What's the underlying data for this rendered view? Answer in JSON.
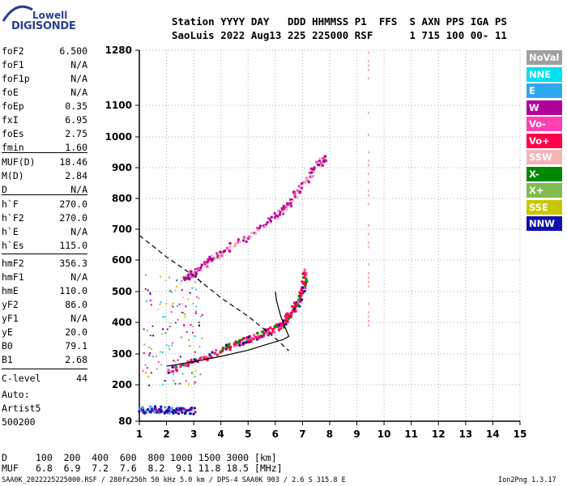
{
  "logo": {
    "line1": "Lowell",
    "line2": "DIGISONDE"
  },
  "header": {
    "line1": "Station YYYY DAY   DDD HHMMSS P1  FFS  S AXN PPS IGA PS",
    "line2": "SaoLuis 2022 Aug13 225 225000 RSF      1 715 100 00- 11"
  },
  "params": [
    {
      "label": "foF2",
      "value": "6.500"
    },
    {
      "label": "foF1",
      "value": "N/A"
    },
    {
      "label": "foF1p",
      "value": "N/A"
    },
    {
      "label": "foE",
      "value": "N/A"
    },
    {
      "label": "foEp",
      "value": "0.35"
    },
    {
      "label": "fxI",
      "value": "6.95"
    },
    {
      "label": "foEs",
      "value": "2.75"
    },
    {
      "label": "fmin",
      "value": "1.60"
    },
    {
      "label": "MUF(D)",
      "value": "18.46"
    },
    {
      "label": "M(D)",
      "value": "2.84"
    },
    {
      "label": "D",
      "value": "N/A"
    },
    {
      "label": "h`F",
      "value": "270.0"
    },
    {
      "label": "h`F2",
      "value": "270.0"
    },
    {
      "label": "h`E",
      "value": "N/A"
    },
    {
      "label": "h`Es",
      "value": "115.0"
    },
    {
      "label": "hmF2",
      "value": "356.3"
    },
    {
      "label": "hmF1",
      "value": "N/A"
    },
    {
      "label": "hmE",
      "value": "110.0"
    },
    {
      "label": "yF2",
      "value": "86.0"
    },
    {
      "label": "yF1",
      "value": "N/A"
    },
    {
      "label": "yE",
      "value": "20.0"
    },
    {
      "label": "B0",
      "value": "79.1"
    },
    {
      "label": "B1",
      "value": "2.68"
    },
    {
      "label": "C-level",
      "value": "44"
    }
  ],
  "auto": {
    "line1": "Auto:",
    "line2": "Artist5",
    "line3": "500200"
  },
  "legend": [
    {
      "label": "NoVal",
      "color": "#a0a0a0"
    },
    {
      "label": "NNE",
      "color": "#00e0f0"
    },
    {
      "label": "E",
      "color": "#30a8f0"
    },
    {
      "label": "W",
      "color": "#b0009a"
    },
    {
      "label": "Vo-",
      "color": "#ff40b0"
    },
    {
      "label": "Vo+",
      "color": "#ff0048"
    },
    {
      "label": "SSW",
      "color": "#f4b4b4"
    },
    {
      "label": "X-",
      "color": "#008800"
    },
    {
      "label": "X+",
      "color": "#80bc50"
    },
    {
      "label": "SSE",
      "color": "#c8c800"
    },
    {
      "label": "NNW",
      "color": "#1010b0"
    }
  ],
  "muf_table": {
    "d_label": "D",
    "d_values": "100  200  400  600  800 1000 1500 3000 [km]",
    "muf_label": "MUF",
    "muf_values": "6.8  6.9  7.2  7.6  8.2  9.1 11.8 18.5 [MHz]"
  },
  "footer": {
    "left": "SAA0K_2022225225000.RSF / 280fx256h 50 kHz 5.0 km / DPS-4 SAA0K 903 / 2.6 S 315.8 E",
    "right": "Ion2Png 1.3.17"
  },
  "chart_data": {
    "type": "scatter",
    "x_ticks": [
      "1",
      "2",
      "3",
      "4",
      "5",
      "6",
      "7",
      "8",
      "9",
      "10",
      "11",
      "12",
      "13",
      "14",
      "15"
    ],
    "y_ticks": [
      "80",
      "200",
      "300",
      "400",
      "500",
      "600",
      "700",
      "800",
      "900",
      "1000",
      "1100",
      "1280"
    ],
    "xlim": [
      1,
      15
    ],
    "y_scale": "nonlinear (height in km)",
    "ylim": [
      80,
      1280
    ],
    "grid": true,
    "traces": [
      {
        "name": "O-trace",
        "color": "#ff0048",
        "points": [
          [
            2.0,
            248
          ],
          [
            3.0,
            280
          ],
          [
            4.0,
            315
          ],
          [
            4.5,
            335
          ],
          [
            5.0,
            350
          ],
          [
            5.5,
            365
          ],
          [
            6.0,
            385
          ],
          [
            6.3,
            405
          ],
          [
            6.5,
            430
          ],
          [
            6.8,
            470
          ],
          [
            7.0,
            520
          ],
          [
            7.1,
            570
          ]
        ]
      },
      {
        "name": "multihop",
        "color": "#b0009a",
        "points": [
          [
            2.6,
            545
          ],
          [
            3.0,
            560
          ],
          [
            3.5,
            600
          ],
          [
            4.0,
            630
          ],
          [
            5.0,
            680
          ],
          [
            6.0,
            750
          ],
          [
            6.5,
            790
          ],
          [
            7.0,
            850
          ],
          [
            7.5,
            910
          ],
          [
            7.8,
            935
          ]
        ]
      },
      {
        "name": "Es-low",
        "color": "#1010b0",
        "points": [
          [
            1.0,
            120
          ],
          [
            1.5,
            122
          ],
          [
            2.0,
            120
          ],
          [
            2.5,
            118
          ],
          [
            3.0,
            117
          ]
        ]
      }
    ],
    "profile_line": [
      [
        2.0,
        260
      ],
      [
        3.0,
        275
      ],
      [
        4.0,
        292
      ],
      [
        5.0,
        312
      ],
      [
        5.8,
        333
      ],
      [
        6.3,
        346
      ],
      [
        6.5,
        356
      ],
      [
        6.4,
        376
      ],
      [
        6.2,
        420
      ],
      [
        6.05,
        470
      ],
      [
        6.0,
        500
      ]
    ],
    "dashed_line": [
      [
        1.0,
        680
      ],
      [
        2.0,
        610
      ],
      [
        3.0,
        550
      ],
      [
        4.0,
        480
      ],
      [
        5.0,
        420
      ],
      [
        6.0,
        350
      ],
      [
        6.5,
        310
      ]
    ]
  }
}
